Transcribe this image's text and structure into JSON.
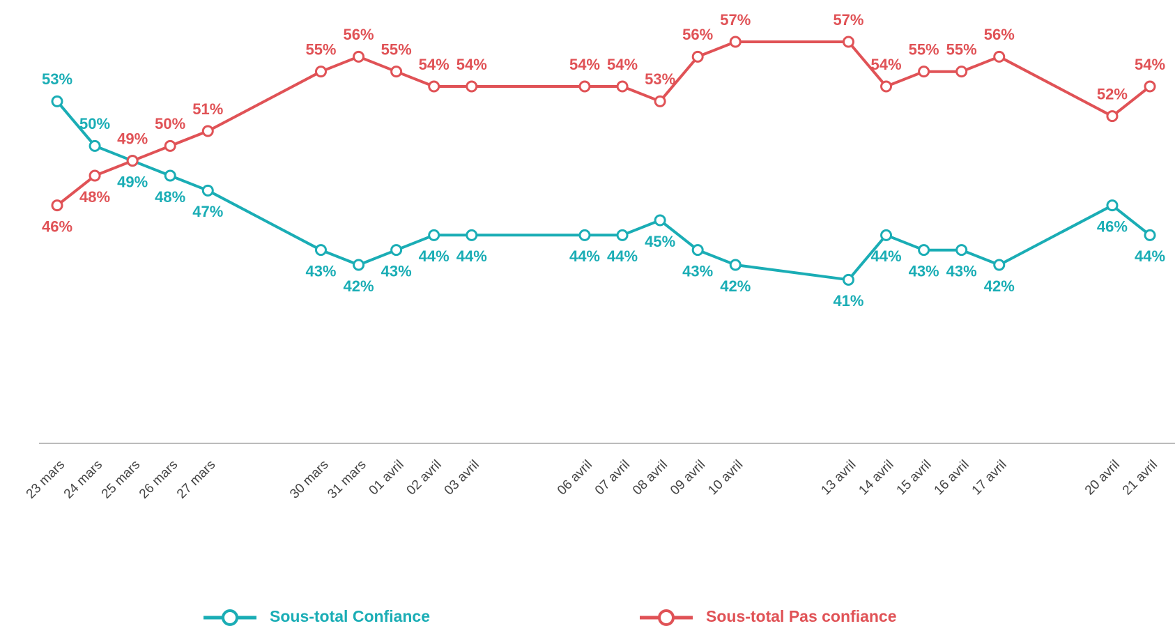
{
  "chart_data": {
    "type": "line",
    "categories": [
      "23 mars",
      "24 mars",
      "25 mars",
      "26 mars",
      "27 mars",
      "30 mars",
      "31 mars",
      "01 avril",
      "02 avril",
      "03 avril",
      "06 avril",
      "07 avril",
      "08 avril",
      "09 avril",
      "10 avril",
      "13 avril",
      "14 avril",
      "15 avril",
      "16 avril",
      "17 avril",
      "20 avril",
      "21 avril"
    ],
    "series": [
      {
        "name": "Sous-total Confiance",
        "color": "#1aadb5",
        "values": [
          53,
          50,
          49,
          48,
          47,
          43,
          42,
          43,
          44,
          44,
          44,
          44,
          45,
          43,
          42,
          41,
          44,
          43,
          43,
          42,
          46,
          44
        ],
        "value_labels": [
          "53%",
          "50%",
          "49%",
          "48%",
          "47%",
          "43%",
          "42%",
          "43%",
          "44%",
          "44%",
          "44%",
          "44%",
          "45%",
          "43%",
          "42%",
          "41%",
          "44%",
          "43%",
          "43%",
          "42%",
          "46%",
          "44%"
        ]
      },
      {
        "name": "Sous-total Pas confiance",
        "color": "#e05256",
        "values": [
          46,
          48,
          49,
          50,
          51,
          55,
          56,
          55,
          54,
          54,
          54,
          54,
          53,
          56,
          57,
          57,
          54,
          55,
          55,
          56,
          52,
          54
        ],
        "value_labels": [
          "46%",
          "48%",
          "49%",
          "50%",
          "51%",
          "55%",
          "56%",
          "55%",
          "54%",
          "54%",
          "54%",
          "54%",
          "53%",
          "56%",
          "57%",
          "57%",
          "54%",
          "55%",
          "55%",
          "56%",
          "52%",
          "54%"
        ]
      }
    ],
    "ylim": [
      30,
      60
    ]
  }
}
